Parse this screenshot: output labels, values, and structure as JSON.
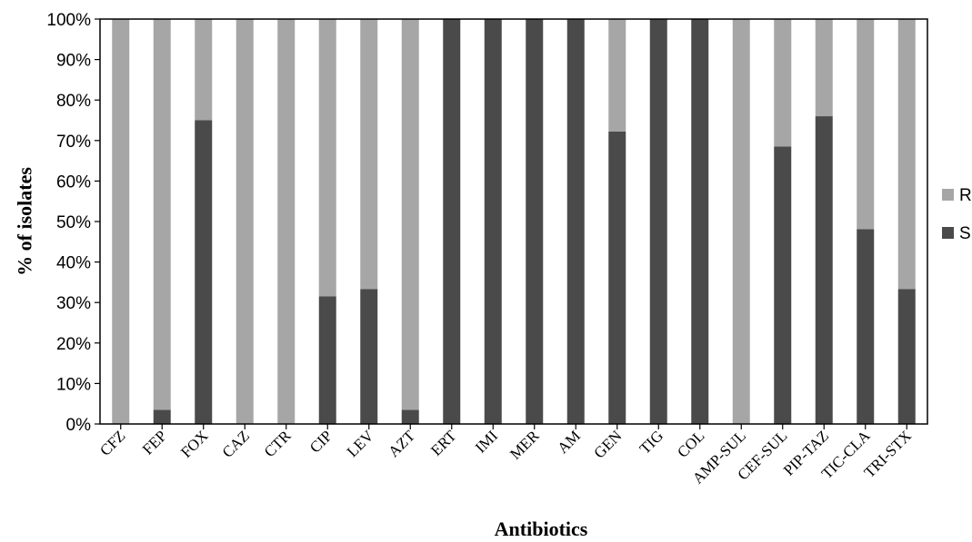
{
  "chart_data": {
    "type": "bar",
    "stacked": true,
    "normalized_percent": true,
    "xlabel": "Antibiotics",
    "ylabel": "% of isolates",
    "ylim": [
      0,
      100
    ],
    "yticks": [
      "0%",
      "10%",
      "20%",
      "30%",
      "40%",
      "50%",
      "60%",
      "70%",
      "80%",
      "90%",
      "100%"
    ],
    "grid": false,
    "legend_position": "right",
    "categories": [
      "CFZ",
      "FEP",
      "FOX",
      "CAZ",
      "CTR",
      "CIP",
      "LEV",
      "AZT",
      "ERT",
      "IMI",
      "MER",
      "AM",
      "GEN",
      "TIG",
      "COL",
      "AMP-SUL",
      "CEF-SUL",
      "PIP-TAZ",
      "TIC-CLA",
      "TRI-STX"
    ],
    "series": [
      {
        "name": "S",
        "color": "#4a4a4a",
        "values": [
          0,
          3.5,
          75,
          0,
          0,
          31.5,
          33.3,
          3.5,
          100,
          100,
          100,
          100,
          72.2,
          100,
          100,
          0,
          68.5,
          76,
          48.1,
          33.3
        ]
      },
      {
        "name": "R",
        "color": "#a6a6a6",
        "values": [
          100,
          96.5,
          25,
          100,
          100,
          68.5,
          66.7,
          96.5,
          0,
          0,
          0,
          0,
          27.8,
          0,
          0,
          100,
          31.5,
          24,
          51.9,
          66.7
        ]
      }
    ]
  }
}
